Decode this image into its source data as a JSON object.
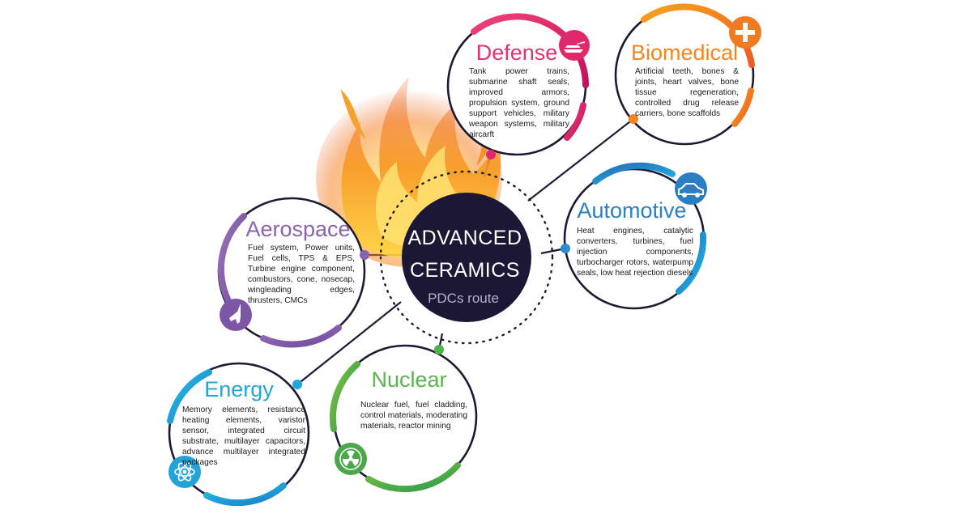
{
  "center": {
    "title_line1": "ADVANCED",
    "title_line2": "CERAMICS",
    "subtitle": "PDCs route"
  },
  "sectors": {
    "defense": {
      "title": "Defense",
      "text": "Tank power trains, submarine shaft seals, improved armors, propulsion system, ground support vehicles, military weapon systems, military aircarft",
      "color": "#e8306e",
      "icon": "tank-icon"
    },
    "biomedical": {
      "title": "Biomedical",
      "text": "Artificial teeth, bones & joints, heart valves, bone tissue regeneration, controlled drug release carriers, bone scaffolds",
      "color": "#f5861f",
      "icon": "plus-icon"
    },
    "automotive": {
      "title": "Automotive",
      "text": "Heat engines, catalytic converters, turbines, fuel injection components, turbocharger rotors, waterpump seals, low heat rejection diesels",
      "color": "#2d7fc1",
      "icon": "car-icon"
    },
    "aerospace": {
      "title": "Aerospace",
      "text": "Fuel system, Power units, Fuel cells, TPS & EPS, Turbine engine component, combustors, cone, nosecap, wingleading edges, thrusters, CMCs",
      "color": "#8b62ad",
      "icon": "shuttle-icon"
    },
    "energy": {
      "title": "Energy",
      "text": "Memory elements, resistance heating elements, varistor sensor, integrated circuit substrate, multilayer capacitors, advance multilayer integrated packages",
      "color": "#1fa7d6",
      "icon": "atom-icon"
    },
    "nuclear": {
      "title": "Nuclear",
      "text": "Nuclear fuel, fuel cladding, control materials, moderating materials, reactor mining",
      "color": "#4fb14a",
      "icon": "radiation-icon"
    }
  }
}
